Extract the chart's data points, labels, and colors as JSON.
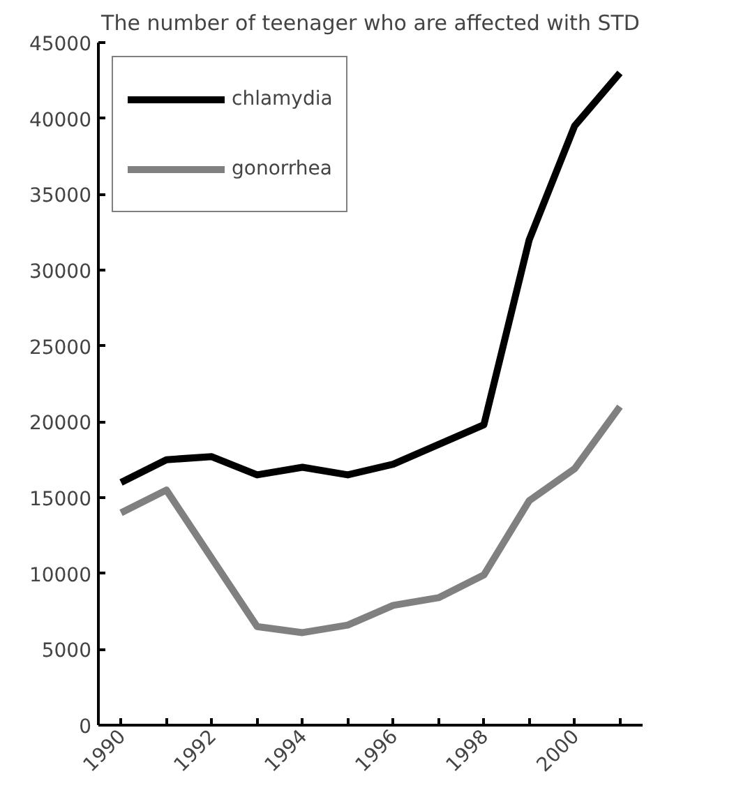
{
  "chart_data": {
    "type": "line",
    "title": "The number of teenager who are affected with STD",
    "categories": [
      "1990",
      null,
      "1992",
      null,
      "1994",
      null,
      "1996",
      null,
      "1998",
      null,
      "2000",
      null
    ],
    "series": [
      {
        "name": "chlamydia",
        "color": "#000000",
        "values": [
          16000,
          17500,
          17700,
          16500,
          17000,
          16500,
          17200,
          18500,
          19800,
          32000,
          39500,
          43000
        ]
      },
      {
        "name": "gonorrhea",
        "color": "#808080",
        "values": [
          14000,
          15500,
          11000,
          6500,
          6100,
          6600,
          7900,
          8400,
          9900,
          14800,
          16900,
          21000
        ]
      }
    ],
    "ylim": [
      0,
      45000
    ],
    "yticks": [
      0,
      5000,
      10000,
      15000,
      20000,
      25000,
      30000,
      35000,
      40000,
      45000
    ],
    "grid": false,
    "legend": "top left",
    "marker": "none",
    "line_style": "solid"
  }
}
